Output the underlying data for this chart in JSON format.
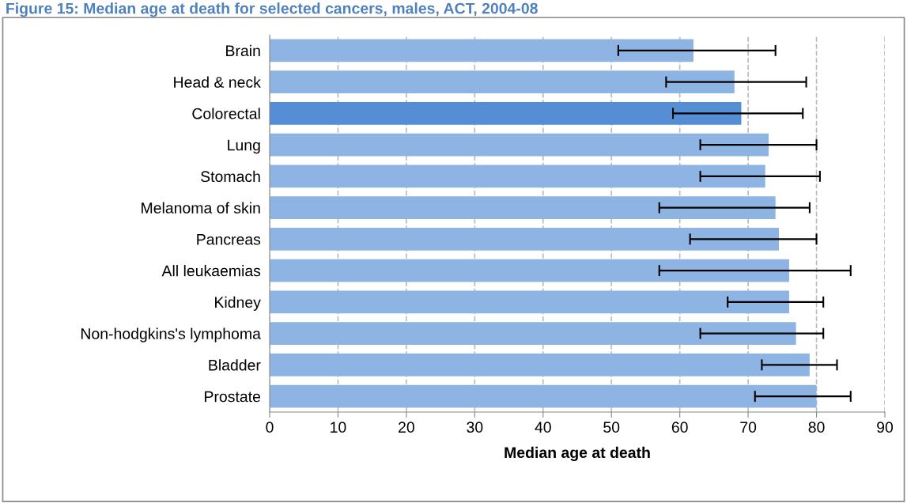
{
  "chart_data": {
    "type": "bar",
    "orientation": "horizontal",
    "title": "Figure 15: Median age at death for selected cancers, males, ACT, 2004-08",
    "xlabel": "Median age at death",
    "categories": [
      "Brain",
      "Head & neck",
      "Colorectal",
      "Lung",
      "Stomach",
      "Melanoma of skin",
      "Pancreas",
      "All leukaemias",
      "Kidney",
      "Non-hodgkins's lymphoma",
      "Bladder",
      "Prostate"
    ],
    "values": [
      62,
      68,
      69,
      73,
      72.5,
      74,
      74.5,
      76,
      76,
      77,
      79,
      80
    ],
    "colors": [
      "#8eb4e3",
      "#8eb4e3",
      "#558ed5",
      "#8eb4e3",
      "#8eb4e3",
      "#8eb4e3",
      "#8eb4e3",
      "#8eb4e3",
      "#8eb4e3",
      "#8eb4e3",
      "#8eb4e3",
      "#8eb4e3"
    ],
    "errors": [
      [
        51,
        74
      ],
      [
        58,
        78.5
      ],
      [
        59,
        78
      ],
      [
        63,
        80
      ],
      [
        63,
        80.5
      ],
      [
        57,
        79
      ],
      [
        61.5,
        80
      ],
      [
        57,
        85
      ],
      [
        67,
        81
      ],
      [
        63,
        81
      ],
      [
        72,
        83
      ],
      [
        71,
        85
      ]
    ],
    "xlim": [
      0,
      90
    ],
    "xticks": [
      0,
      10,
      20,
      30,
      40,
      50,
      60,
      70,
      80,
      90
    ],
    "grid": "x"
  }
}
